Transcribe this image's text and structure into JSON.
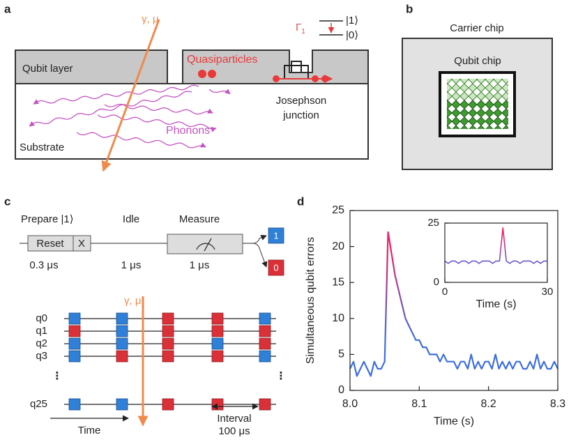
{
  "panels": {
    "a": {
      "label": "a",
      "particle_label": "γ, μ",
      "qubit_layer": "Qubit layer",
      "quasiparticles": "Quasiparticles",
      "gamma": "Γ",
      "gamma_sub": "1",
      "state1": "|1⟩",
      "state0": "|0⟩",
      "junction": [
        "Josephson",
        "junction"
      ],
      "phonons": "Phonons",
      "substrate": "Substrate"
    },
    "b": {
      "label": "b",
      "carrier": "Carrier chip",
      "qubit_chip": "Qubit chip"
    },
    "c": {
      "label": "c",
      "prepare": "Prepare |1⟩",
      "idle": "Idle",
      "measure": "Measure",
      "reset": "Reset",
      "x_gate": "X",
      "out1": "1",
      "out0": "0",
      "durations": [
        "0.3 μs",
        "1 μs",
        "1 μs"
      ],
      "qubits": [
        "q0",
        "q1",
        "q2",
        "q3",
        "q25"
      ],
      "outcomes": [
        [
          1,
          1,
          0,
          0,
          1
        ],
        [
          0,
          1,
          0,
          0,
          0
        ],
        [
          1,
          1,
          0,
          1,
          0
        ],
        [
          1,
          0,
          0,
          0,
          1
        ],
        [
          1,
          1,
          0,
          0,
          0
        ]
      ],
      "particle_label": "γ, μ",
      "time": "Time",
      "interval": [
        "Interval",
        "100 μs"
      ]
    }
  },
  "chart_data": [
    {
      "type": "line",
      "panel_label": "d",
      "xlabel": "Time (s)",
      "ylabel": "Simultaneous qubit errors",
      "x": [
        8.0,
        8.005,
        8.01,
        8.015,
        8.02,
        8.025,
        8.03,
        8.035,
        8.04,
        8.045,
        8.05,
        8.055,
        8.06,
        8.065,
        8.07,
        8.075,
        8.08,
        8.085,
        8.09,
        8.095,
        8.1,
        8.105,
        8.11,
        8.115,
        8.12,
        8.125,
        8.13,
        8.135,
        8.14,
        8.145,
        8.15,
        8.155,
        8.16,
        8.165,
        8.17,
        8.175,
        8.18,
        8.185,
        8.19,
        8.195,
        8.2,
        8.205,
        8.21,
        8.215,
        8.22,
        8.225,
        8.23,
        8.235,
        8.24,
        8.245,
        8.25,
        8.255,
        8.26,
        8.265,
        8.27,
        8.275,
        8.28,
        8.285,
        8.29,
        8.295,
        8.3
      ],
      "values": [
        3,
        4,
        2,
        3,
        4,
        3,
        2,
        4,
        3,
        3,
        4,
        22,
        19,
        16,
        14,
        12,
        10,
        9,
        8,
        7,
        7,
        6,
        6,
        5,
        5,
        5,
        4,
        5,
        4,
        4,
        4,
        3,
        4,
        4,
        3,
        5,
        3,
        4,
        3,
        4,
        4,
        3,
        5,
        3,
        4,
        3,
        4,
        3,
        4,
        4,
        3,
        3,
        4,
        3,
        5,
        3,
        4,
        3,
        3,
        4,
        3
      ],
      "gradient": [
        "#e8206a",
        "#3b6ee0"
      ],
      "xlim": [
        8.0,
        8.3
      ],
      "xticks": [
        {
          "value": 8.0,
          "label": "8.0"
        },
        8.1,
        8.2,
        8.3
      ],
      "ylim": [
        0,
        25
      ],
      "yticks": [
        0,
        5,
        10,
        15,
        20,
        25
      ]
    },
    {
      "type": "line",
      "xlabel": "Time (s)",
      "x": [
        0,
        1,
        2,
        3,
        4,
        5,
        6,
        7,
        8,
        9,
        10,
        11,
        12,
        13,
        14,
        15,
        16,
        17,
        18,
        19,
        20,
        21,
        22,
        23,
        24,
        25,
        26,
        27,
        28,
        29,
        30
      ],
      "values": [
        9,
        8,
        9,
        9,
        8,
        9,
        9,
        8,
        9,
        9,
        8,
        9,
        9,
        9,
        8,
        9,
        9,
        23,
        9,
        8,
        9,
        9,
        8,
        9,
        9,
        9,
        8,
        9,
        8,
        9,
        9
      ],
      "gradient": [
        "#e8206a",
        "#5d5ee0"
      ],
      "xlim": [
        0,
        30
      ],
      "xticks": [
        0,
        30
      ],
      "ylim": [
        0,
        25
      ],
      "yticks": [
        0,
        25
      ]
    }
  ]
}
